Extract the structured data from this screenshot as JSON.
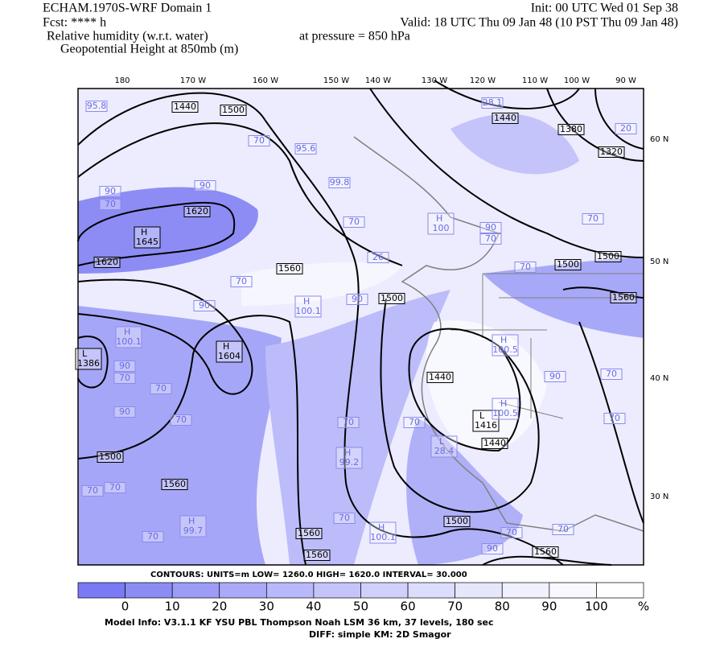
{
  "header": {
    "left": [
      "ECHAM.1970S-WRF Domain 1",
      "Fcst: **** h",
      "Relative humidity (w.r.t. water)",
      "Geopotential Height at 850mb (m)"
    ],
    "right": [
      "Init: 00 UTC Wed 01 Sep 38",
      "Valid: 18 UTC Thu 09 Jan 48 (10 PST Thu 09 Jan 48)"
    ],
    "pressure": "at pressure =  850 hPa"
  },
  "lon_labels": [
    "180",
    "170 W",
    "160 W",
    "150 W",
    "140 W",
    "130 W",
    "120 W",
    "110 W",
    "100 W",
    "90 W"
  ],
  "lat_labels": [
    "60 N",
    "50 N",
    "40 N",
    "30 N"
  ],
  "height_labels": [
    "1440",
    "1500",
    "1440",
    "1380",
    "1320",
    "1620",
    "1620",
    "1560",
    "1500",
    "1500",
    "1500",
    "1560",
    "1440",
    "1440",
    "1500",
    "1560",
    "1500",
    "1560",
    "1560",
    "1560"
  ],
  "height_centers": [
    {
      "symbol": "H",
      "value": "1645"
    },
    {
      "symbol": "H",
      "value": "1604"
    },
    {
      "symbol": "L",
      "value": "1386"
    },
    {
      "symbol": "L",
      "value": "1416"
    }
  ],
  "rh_labels": [
    "95.8",
    "90",
    "70",
    "90",
    "70",
    "95.6",
    "99.8",
    "90",
    "70",
    "70",
    "28.1",
    "70",
    "26",
    "90",
    "90",
    "70",
    "90",
    "70",
    "70",
    "70",
    "90",
    "70",
    "70",
    "70",
    "70",
    "70",
    "70",
    "70",
    "90",
    "70",
    "70",
    "70",
    "90",
    "70",
    "20"
  ],
  "rh_centers": [
    {
      "symbol": "H",
      "value": "100"
    },
    {
      "symbol": "H",
      "value": "100.1"
    },
    {
      "symbol": "H",
      "value": "100.1"
    },
    {
      "symbol": "H",
      "value": "99.2"
    },
    {
      "symbol": "H",
      "value": "100.5"
    },
    {
      "symbol": "H",
      "value": "100.5"
    },
    {
      "symbol": "L",
      "value": "28.4"
    },
    {
      "symbol": "H",
      "value": "99.7"
    },
    {
      "symbol": "H",
      "value": "100.1"
    }
  ],
  "contour_info": "CONTOURS:  UNITS=m  LOW=  1260.0      HIGH=  1620.0      INTERVAL=    30.000",
  "colorbar": {
    "labels": [
      "0",
      "10",
      "20",
      "30",
      "40",
      "50",
      "60",
      "70",
      "80",
      "90",
      "100"
    ],
    "unit": "%"
  },
  "footer": [
    "Model Info: V3.1.1    KF       YSU PBL  Thompson    Noah LSM  36 km,    37 levels,  180 sec",
    "DIFF: simple KM: 2D Smagor"
  ]
}
